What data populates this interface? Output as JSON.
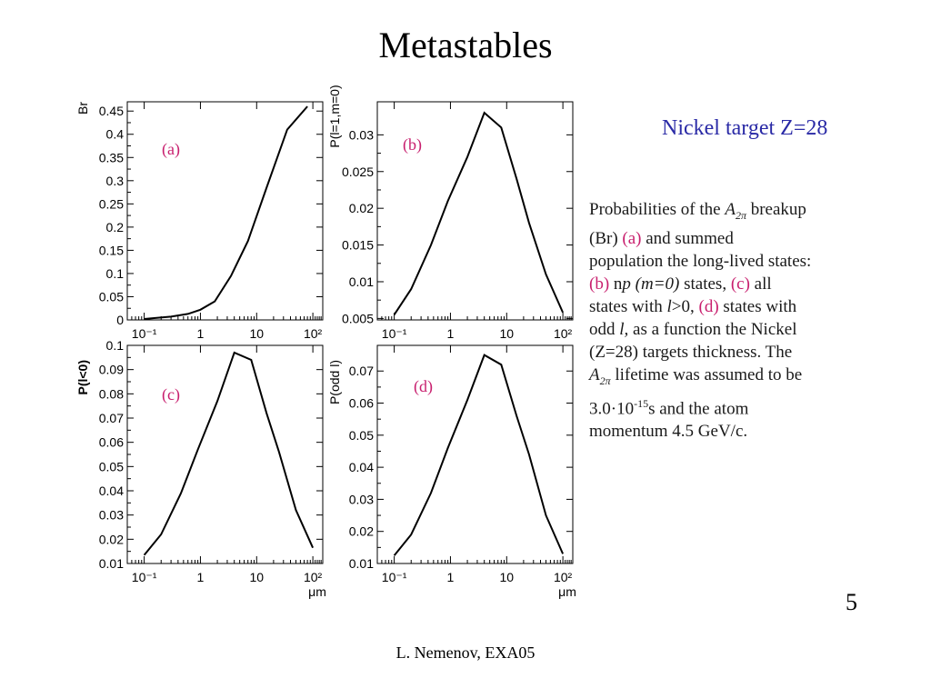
{
  "page": {
    "title": "Metastables",
    "heading": "Nickel target  Z=28",
    "page_number": "5",
    "footer": "L. Nemenov, EXA05",
    "description": {
      "l1_a": "Probabilities of the ",
      "l1_sym": "A",
      "l1_sub": "2π",
      "l1_b": " breakup",
      "l2_a": "(Br) ",
      "l2_m": "(a)",
      "l2_b": " and  summed",
      "l3": "population the long-lived states:",
      "l4_m1": "(b)",
      "l4_a": " n",
      "l4_p": "p",
      "l4_b": " ",
      "l4_paren": "(m=0)",
      "l4_c": " states,  ",
      "l4_m2": "(c)",
      "l4_d": " all",
      "l5_a": "states with ",
      "l5_l": "l",
      "l5_b": ">0,  ",
      "l5_m": "(d)",
      "l5_c": " states with",
      "l6_a": "odd ",
      "l6_l": "l,",
      "l6_b": " as a function the Nickel",
      "l7": "(Z=28) targets thickness.  The",
      "l8_sym": "A",
      "l8_sub": "2π",
      "l8_a": " lifetime was assumed to be",
      "l9_a": "3.0·10",
      "l9_sup": "-15",
      "l9_b": "s and the atom",
      "l10": "momentum 4.5 GeV/c."
    },
    "colors": {
      "accent": "#c81f6e",
      "heading": "#2a2aa6",
      "line": "#000000"
    }
  },
  "chart_data": [
    {
      "type": "line",
      "panel_label": "(a)",
      "ylabel": "Br",
      "xlabel": "",
      "xscale": "log",
      "xlim": [
        0.05,
        150
      ],
      "ylim": [
        0,
        0.47
      ],
      "yticks": [
        0,
        0.05,
        0.1,
        0.15,
        0.2,
        0.25,
        0.3,
        0.35,
        0.4,
        0.45
      ],
      "ytick_labels": [
        "0",
        "0.05",
        "0.1",
        "0.15",
        "0.2",
        "0.25",
        "0.3",
        "0.35",
        "0.4",
        "0.45"
      ],
      "xticks": [
        0.1,
        1,
        10,
        100
      ],
      "xtick_labels": [
        "10⁻¹",
        "1",
        "10",
        "10²"
      ],
      "x": [
        0.1,
        0.15,
        0.3,
        0.6,
        1,
        1.8,
        3.5,
        7,
        15,
        35,
        80
      ],
      "y": [
        0.002,
        0.004,
        0.007,
        0.013,
        0.022,
        0.04,
        0.095,
        0.17,
        0.285,
        0.41,
        0.46
      ]
    },
    {
      "type": "line",
      "panel_label": "(b)",
      "ylabel": "P(l=1,m=0)",
      "xlabel": "",
      "xscale": "log",
      "xlim": [
        0.05,
        150
      ],
      "ylim": [
        0.0048,
        0.0345
      ],
      "yticks": [
        0.005,
        0.01,
        0.015,
        0.02,
        0.025,
        0.03
      ],
      "ytick_labels": [
        "0.005",
        "0.01",
        "0.015",
        "0.02",
        "0.025",
        "0.03"
      ],
      "xticks": [
        0.1,
        1,
        10,
        100
      ],
      "xtick_labels": [
        "10⁻¹",
        "1",
        "10",
        "10²"
      ],
      "x": [
        0.1,
        0.2,
        0.45,
        0.9,
        2,
        4,
        8,
        15,
        25,
        50,
        100
      ],
      "y": [
        0.0055,
        0.009,
        0.015,
        0.021,
        0.027,
        0.033,
        0.031,
        0.024,
        0.018,
        0.011,
        0.0058
      ]
    },
    {
      "type": "line",
      "panel_label": "(c)",
      "ylabel": "P(l<0)",
      "xlabel": "μm",
      "xscale": "log",
      "xlim": [
        0.05,
        150
      ],
      "ylim": [
        0.01,
        0.1
      ],
      "yticks": [
        0.01,
        0.02,
        0.03,
        0.04,
        0.05,
        0.06,
        0.07,
        0.08,
        0.09,
        0.1
      ],
      "ytick_labels": [
        "0.01",
        "0.02",
        "0.03",
        "0.04",
        "0.05",
        "0.06",
        "0.07",
        "0.08",
        "0.09",
        "0.1"
      ],
      "xticks": [
        0.1,
        1,
        10,
        100
      ],
      "xtick_labels": [
        "10⁻¹",
        "1",
        "10",
        "10²"
      ],
      "x": [
        0.1,
        0.2,
        0.45,
        0.9,
        2,
        4,
        8,
        15,
        25,
        50,
        100
      ],
      "y": [
        0.0135,
        0.022,
        0.039,
        0.057,
        0.077,
        0.097,
        0.094,
        0.072,
        0.056,
        0.032,
        0.0165
      ]
    },
    {
      "type": "line",
      "panel_label": "(d)",
      "ylabel": "P(odd l)",
      "xlabel": "μm",
      "xscale": "log",
      "xlim": [
        0.05,
        150
      ],
      "ylim": [
        0.01,
        0.078
      ],
      "yticks": [
        0.01,
        0.02,
        0.03,
        0.04,
        0.05,
        0.06,
        0.07
      ],
      "ytick_labels": [
        "0.01",
        "0.02",
        "0.03",
        "0.04",
        "0.05",
        "0.06",
        "0.07"
      ],
      "xticks": [
        0.1,
        1,
        10,
        100
      ],
      "xtick_labels": [
        "10⁻¹",
        "1",
        "10",
        "10²"
      ],
      "x": [
        0.1,
        0.2,
        0.45,
        0.9,
        2,
        4,
        8,
        15,
        25,
        50,
        100
      ],
      "y": [
        0.0125,
        0.019,
        0.032,
        0.046,
        0.061,
        0.075,
        0.072,
        0.056,
        0.044,
        0.025,
        0.013
      ]
    }
  ]
}
